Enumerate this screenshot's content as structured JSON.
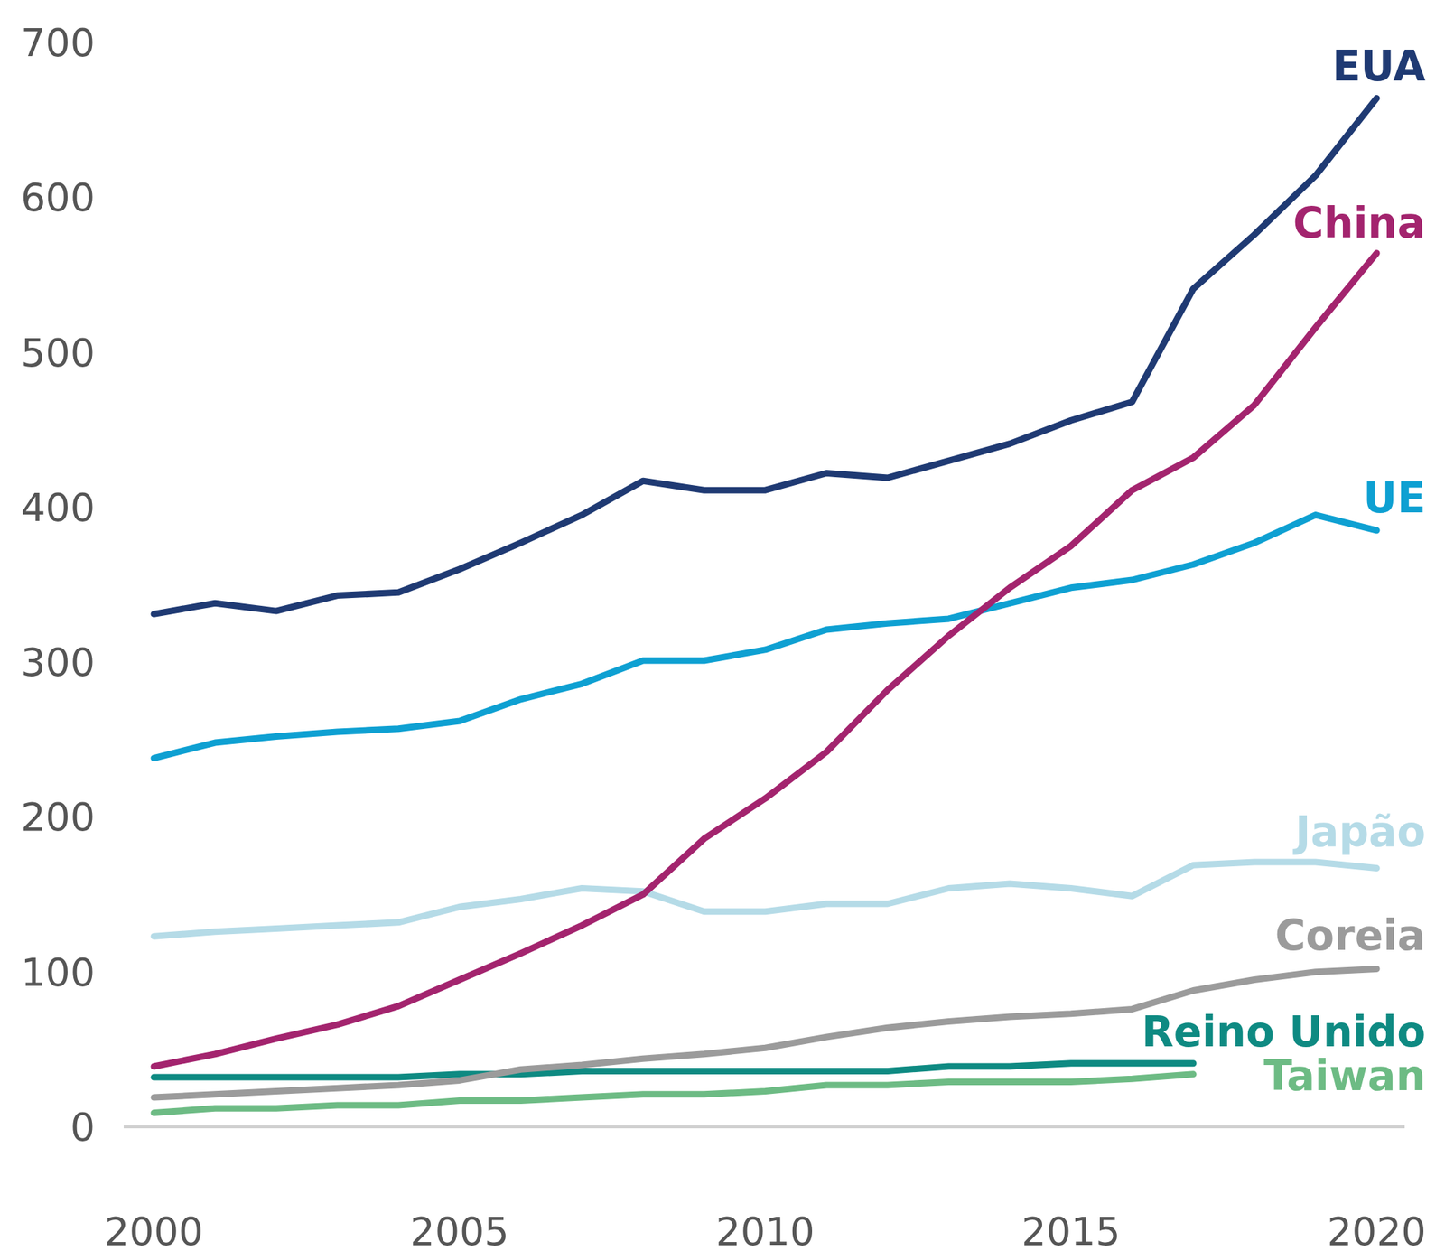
{
  "chart_data": {
    "type": "line",
    "x": [
      2000,
      2001,
      2002,
      2003,
      2004,
      2005,
      2006,
      2007,
      2008,
      2009,
      2010,
      2011,
      2012,
      2013,
      2014,
      2015,
      2016,
      2017,
      2018,
      2019,
      2020
    ],
    "xlim": [
      2000,
      2020
    ],
    "xticks": [
      2000,
      2005,
      2010,
      2015,
      2020
    ],
    "ylim": [
      0,
      700
    ],
    "yticks": [
      0,
      100,
      200,
      300,
      400,
      500,
      600,
      700
    ],
    "grid": false,
    "series": [
      {
        "name": "EUA",
        "color": "#1f3a73",
        "values": [
          331,
          338,
          333,
          343,
          345,
          360,
          377,
          395,
          417,
          411,
          411,
          422,
          419,
          430,
          441,
          456,
          468,
          541,
          576,
          614,
          664
        ]
      },
      {
        "name": "China",
        "color": "#a3246e",
        "values": [
          39,
          47,
          57,
          66,
          78,
          95,
          112,
          130,
          150,
          186,
          212,
          242,
          282,
          317,
          348,
          375,
          411,
          432,
          466,
          516,
          564
        ]
      },
      {
        "name": "UE",
        "color": "#0ea0d2",
        "values": [
          238,
          248,
          252,
          255,
          257,
          262,
          276,
          286,
          301,
          301,
          308,
          321,
          325,
          328,
          338,
          348,
          353,
          363,
          377,
          395,
          385
        ]
      },
      {
        "name": "Japão",
        "color": "#b5dbe7",
        "values": [
          123,
          126,
          128,
          130,
          132,
          142,
          147,
          154,
          152,
          139,
          139,
          144,
          144,
          154,
          157,
          154,
          149,
          169,
          171,
          171,
          167
        ]
      },
      {
        "name": "Coreia",
        "color": "#9b9b9b",
        "values": [
          19,
          21,
          23,
          25,
          27,
          30,
          37,
          40,
          44,
          47,
          51,
          58,
          64,
          68,
          71,
          73,
          76,
          88,
          95,
          100,
          102
        ]
      },
      {
        "name": "Reino Unido",
        "color": "#0e8a82",
        "values": [
          32,
          32,
          32,
          32,
          32,
          34,
          34,
          36,
          36,
          36,
          36,
          36,
          36,
          39,
          39,
          41,
          41,
          41,
          null,
          null,
          null
        ]
      },
      {
        "name": "Taiwan",
        "color": "#6dbb84",
        "values": [
          9,
          12,
          12,
          14,
          14,
          17,
          17,
          19,
          21,
          21,
          23,
          27,
          27,
          29,
          29,
          29,
          31,
          34,
          null,
          null,
          null
        ]
      }
    ]
  }
}
